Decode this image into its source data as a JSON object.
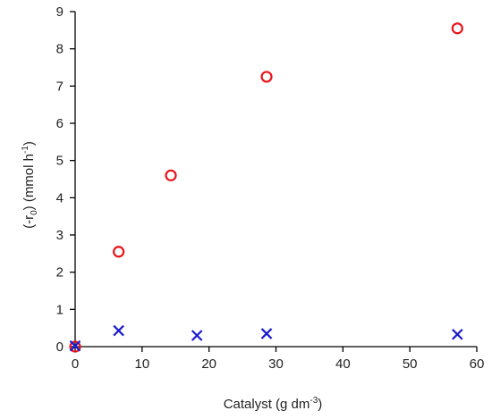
{
  "chart_data": {
    "type": "scatter",
    "title": "",
    "xlabel": {
      "main": "Catalyst (g dm",
      "sup": "-3",
      "tail": ")"
    },
    "ylabel": {
      "pre": "(-r",
      "sub": "0",
      "mid": ") (mmol h",
      "sup": "-1",
      "tail": ")"
    },
    "xlim": [
      0,
      60
    ],
    "ylim": [
      0,
      9
    ],
    "xticks": [
      0,
      10,
      20,
      30,
      40,
      50,
      60
    ],
    "yticks": [
      0,
      1,
      2,
      3,
      4,
      5,
      6,
      7,
      8,
      9
    ],
    "grid": false,
    "legend": "none",
    "series": [
      {
        "marker": "circle",
        "color": "#e8141b",
        "points": [
          {
            "x": 0,
            "y": 0
          },
          {
            "x": 6.5,
            "y": 2.55
          },
          {
            "x": 14.3,
            "y": 4.6
          },
          {
            "x": 28.6,
            "y": 7.25
          },
          {
            "x": 57.1,
            "y": 8.55
          }
        ]
      },
      {
        "marker": "x",
        "color": "#1a1acd",
        "points": [
          {
            "x": 0,
            "y": 0.02
          },
          {
            "x": 6.5,
            "y": 0.43
          },
          {
            "x": 18.2,
            "y": 0.3
          },
          {
            "x": 28.6,
            "y": 0.35
          },
          {
            "x": 57.1,
            "y": 0.33
          }
        ]
      }
    ]
  }
}
